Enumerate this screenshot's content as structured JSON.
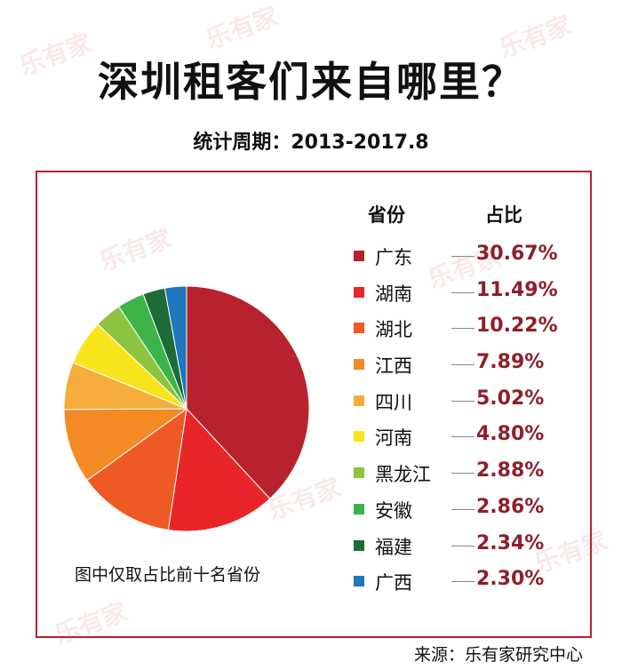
{
  "title": "深圳租客们来自哪里？",
  "subtitle": "统计周期：2013-2017.8",
  "watermark": "乐有家",
  "source": "来源：乐有家研究中心",
  "chart_data": {
    "type": "pie",
    "title": "深圳租客们来自哪里？",
    "subtitle": "统计周期：2013-2017.8",
    "note": "图中仅取占比前十名省份",
    "legend_header": {
      "name": "省份",
      "value": "占比"
    },
    "categories": [
      "广东",
      "湖南",
      "湖北",
      "江西",
      "四川",
      "河南",
      "黑龙江",
      "安徽",
      "福建",
      "广西"
    ],
    "values": [
      30.67,
      11.49,
      10.22,
      7.89,
      5.02,
      4.8,
      2.88,
      2.86,
      2.34,
      2.3
    ],
    "value_labels": [
      "30.67%",
      "11.49%",
      "10.22%",
      "7.89%",
      "5.02%",
      "4.80%",
      "2.88%",
      "2.86%",
      "2.34%",
      "2.30%"
    ],
    "colors": [
      "#b7222c",
      "#e8262a",
      "#ef5a24",
      "#f38a23",
      "#f6ad3b",
      "#f8e51c",
      "#8cc43f",
      "#3cb449",
      "#1d6b36",
      "#1f77bd"
    ],
    "legend_position": "right",
    "start_angle": "12 o'clock",
    "direction": "clockwise"
  }
}
